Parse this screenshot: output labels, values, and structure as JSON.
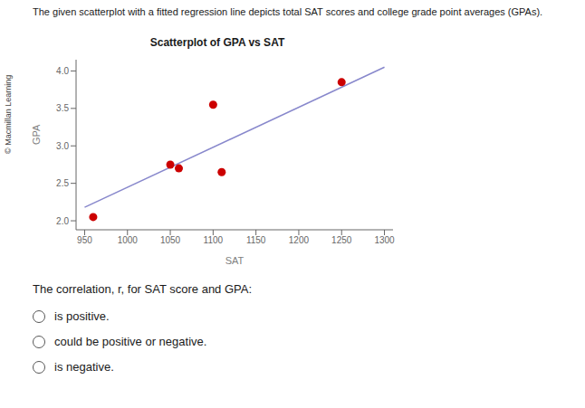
{
  "chart_data": {
    "type": "scatter",
    "title": "Scatterplot of GPA vs SAT",
    "subtitle": "The given scatterplot with a fitted regression line depicts total SAT scores and college grade point averages (GPAs).",
    "xlabel": "SAT",
    "ylabel": "GPA",
    "series": [
      {
        "type": "line",
        "color": "#8888cc",
        "x": [
          950,
          1300
        ],
        "values": [
          2.18,
          4.05
        ]
      },
      {
        "type": "scatter",
        "color": "#cc0000",
        "x": [
          960,
          1050,
          1060,
          1100,
          1110,
          1250
        ],
        "values": [
          2.05,
          2.75,
          2.7,
          3.55,
          2.65,
          3.85
        ]
      }
    ],
    "xlim": [
      940,
      1310
    ],
    "ylim": [
      1.88,
      4.15
    ],
    "xticks": [
      950,
      1000,
      1050,
      1100,
      1150,
      1200,
      1250,
      1300
    ],
    "yticks": [
      {
        "value": 2.0,
        "label": "2.0"
      },
      2.5,
      {
        "value": 3.0,
        "label": "3.0"
      },
      3.5,
      {
        "value": 4.0,
        "label": "4.0"
      }
    ],
    "grid": false,
    "annotations": [
      "© Macmillan Learning",
      "The correlation, r, for SAT score and GPA:",
      "is positive.",
      "could be positive or negative.",
      "is negative."
    ]
  }
}
